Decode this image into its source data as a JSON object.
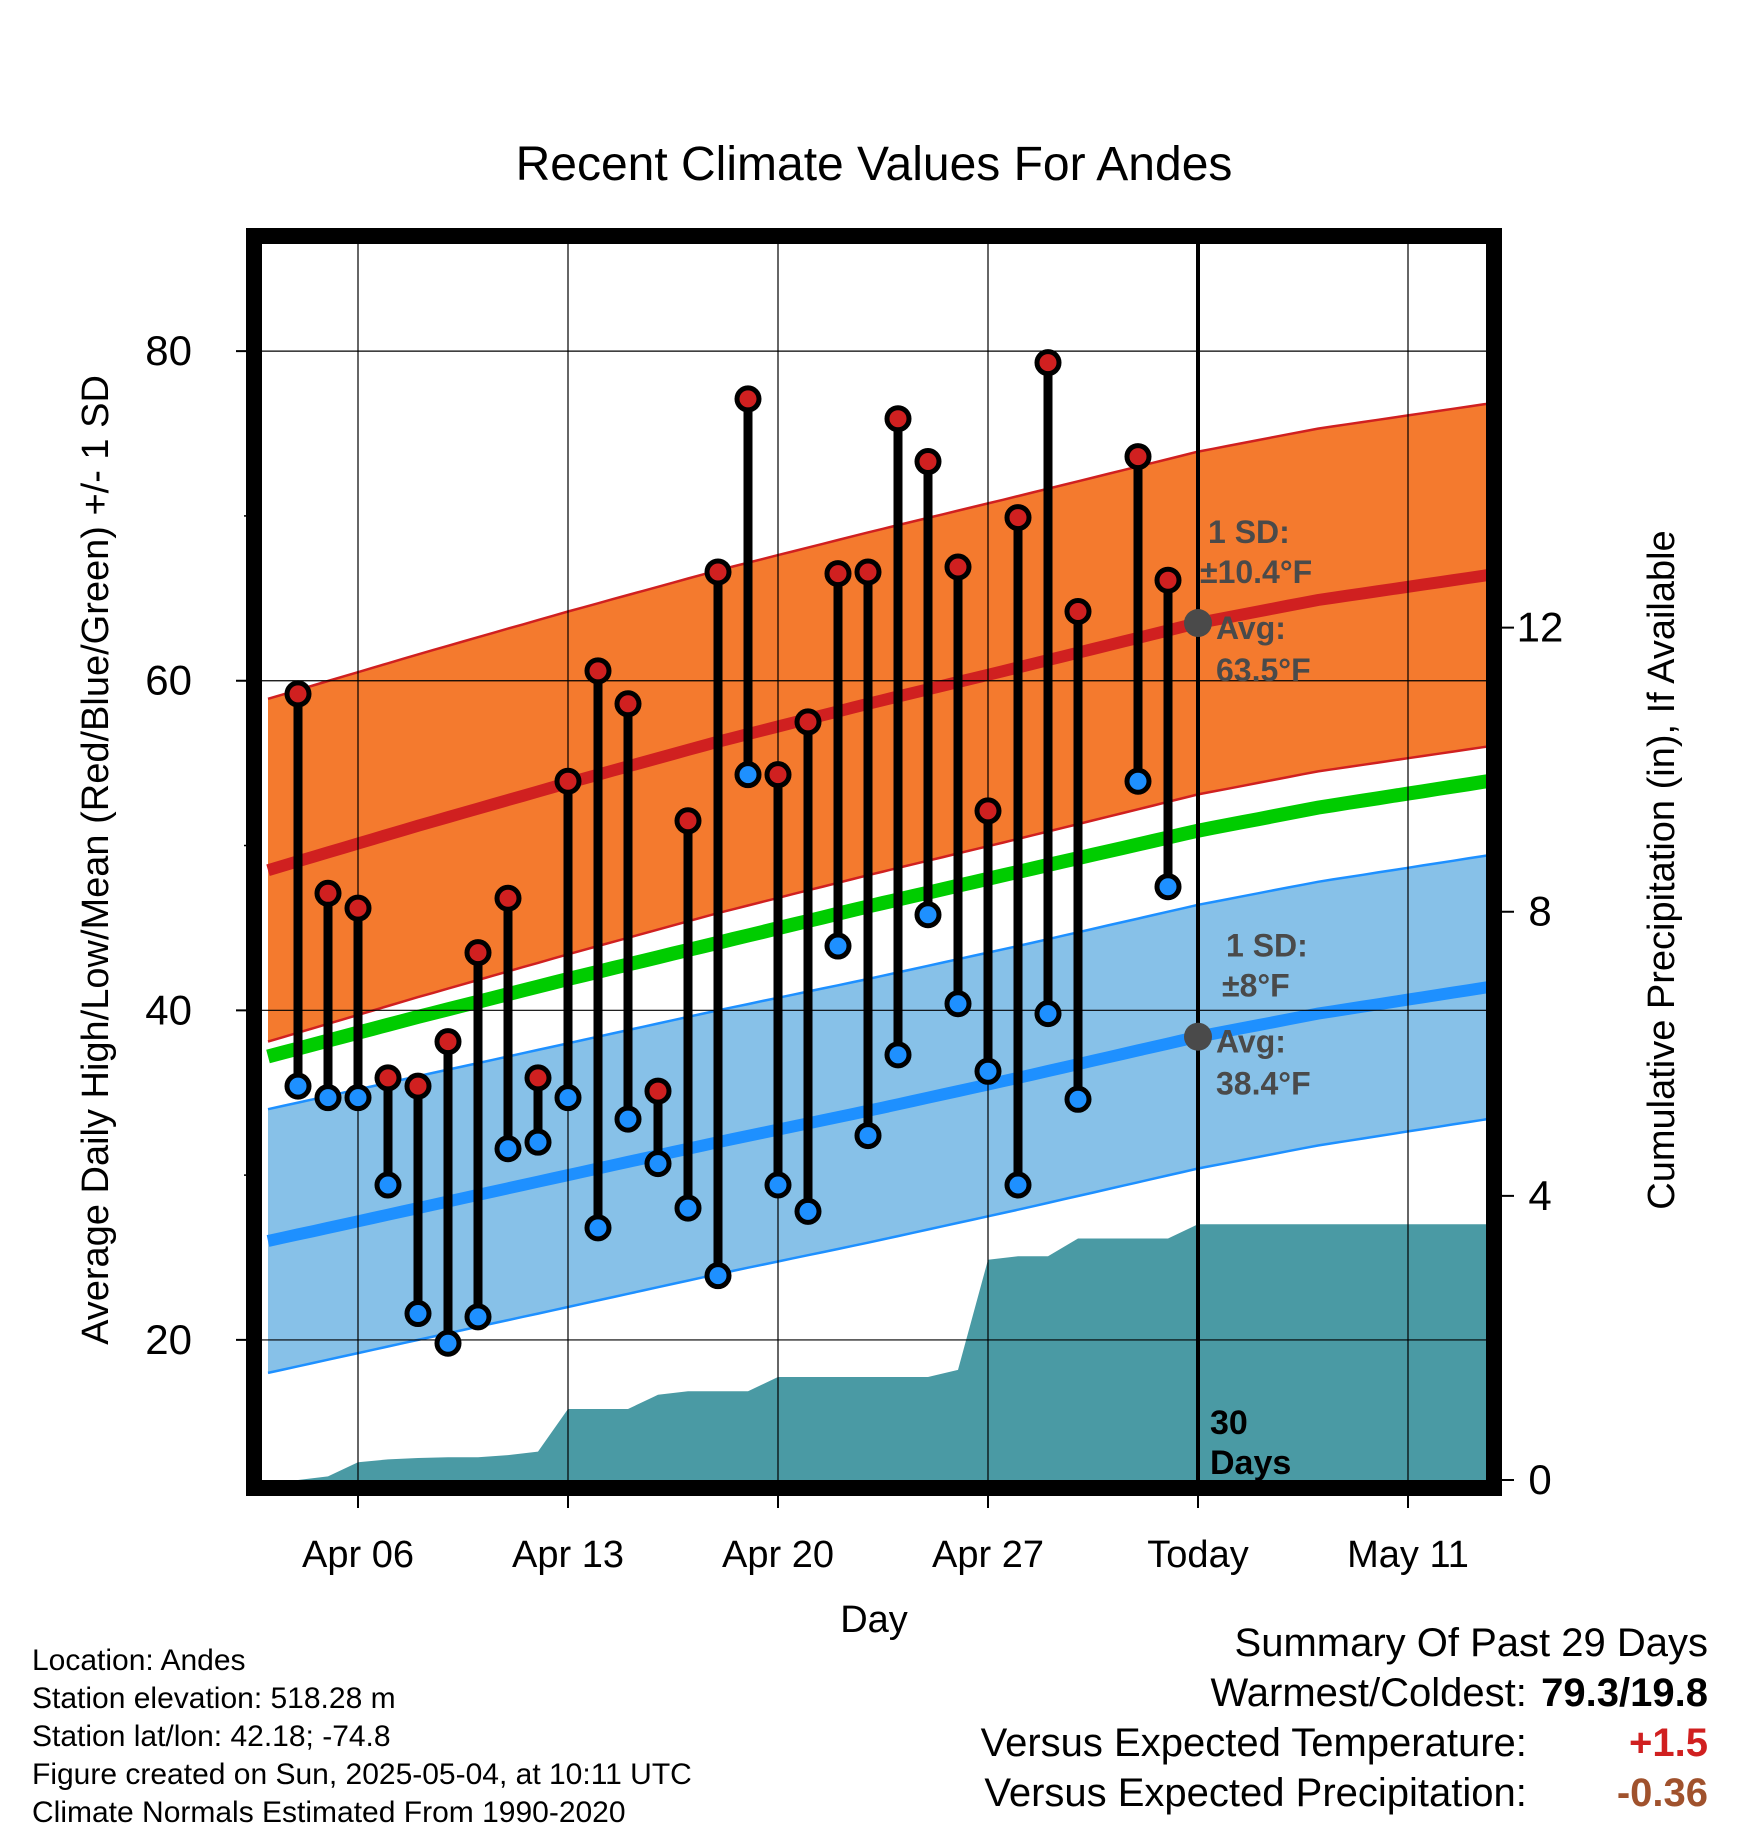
{
  "colors": {
    "high": "#d02020",
    "low": "#1e90ff",
    "mean": "#00cc00",
    "high_band": "#f47a2e",
    "low_band": "#87c1e8",
    "precip": "#4a9aa4",
    "avg_marker": "#4a4a4a",
    "annot_text": "#4a4a4a",
    "temp_anomaly": "#d02020",
    "precip_anomaly": "#a0522d"
  },
  "chart_data": {
    "type": "line",
    "title": "Recent Climate Values For Andes",
    "xlabel": "Day",
    "ylabel": "Average Daily High/Low/Mean (Red/Blue/Green) +/- 1 SD",
    "y2label": "Cumulative Precipitation (in), If Available",
    "ylim": [
      11.5,
      86.5
    ],
    "y2lim": [
      0,
      17.4
    ],
    "xlim": [
      0,
      41
    ],
    "yticks": [
      20,
      40,
      60,
      80
    ],
    "y2ticks": [
      0,
      4,
      8,
      12
    ],
    "xticks": [
      {
        "x": 3,
        "label": "Apr 06"
      },
      {
        "x": 10,
        "label": "Apr 13"
      },
      {
        "x": 17,
        "label": "Apr 20"
      },
      {
        "x": 24,
        "label": "Apr 27"
      },
      {
        "x": 31,
        "label": "Today"
      },
      {
        "x": 38,
        "label": "May 11"
      }
    ],
    "today_x": 31,
    "today_label": "30\nDays",
    "grid": true,
    "normals": {
      "x": [
        0,
        5,
        10,
        15,
        20,
        25,
        31,
        35,
        41
      ],
      "high_mean": [
        48.5,
        51.2,
        53.8,
        56.3,
        58.6,
        60.8,
        63.5,
        64.9,
        66.5
      ],
      "high_sd": 10.4,
      "low_mean": [
        26.0,
        28.0,
        30.0,
        32.0,
        33.9,
        35.9,
        38.4,
        39.8,
        41.5
      ],
      "low_sd": 8,
      "daily_mean": [
        37.2,
        39.6,
        41.9,
        44.1,
        46.3,
        48.4,
        50.9,
        52.3,
        54.0
      ]
    },
    "annotations": {
      "high": {
        "sd_label": "1 SD:",
        "sd_value": "±10.4°F",
        "avg_label": "Avg:",
        "avg_value": "63.5°F",
        "avg": 63.5
      },
      "low": {
        "sd_label": "1 SD:",
        "sd_value": "±8°F",
        "avg_label": "Avg:",
        "avg_value": "38.4°F",
        "avg": 38.4
      }
    },
    "daily": [
      {
        "x": 1,
        "high": 59.2,
        "low": 35.4,
        "high_color": "red",
        "low_color": "blue"
      },
      {
        "x": 2,
        "high": 47.1,
        "low": 34.7,
        "high_color": "red",
        "low_color": "blue"
      },
      {
        "x": 3,
        "high": 46.2,
        "low": 34.7,
        "high_color": "red",
        "low_color": "blue"
      },
      {
        "x": 4,
        "high": 35.9,
        "low": 29.4,
        "high_color": "red",
        "low_color": "blue"
      },
      {
        "x": 5,
        "high": 35.4,
        "low": 21.6,
        "high_color": "red",
        "low_color": "blue"
      },
      {
        "x": 6,
        "high": 38.1,
        "low": 19.8,
        "high_color": "red",
        "low_color": "blue"
      },
      {
        "x": 7,
        "high": 43.5,
        "low": 21.4,
        "high_color": "red",
        "low_color": "blue"
      },
      {
        "x": 8,
        "high": 46.8,
        "low": 31.6,
        "high_color": "red",
        "low_color": "blue"
      },
      {
        "x": 9,
        "high": 35.9,
        "low": 32.0,
        "high_color": "red",
        "low_color": "blue"
      },
      {
        "x": 10,
        "high": 53.9,
        "low": 34.7,
        "high_color": "red",
        "low_color": "blue"
      },
      {
        "x": 11,
        "high": 60.6,
        "low": 26.8,
        "high_color": "red",
        "low_color": "blue"
      },
      {
        "x": 12,
        "high": 58.6,
        "low": 33.4,
        "high_color": "red",
        "low_color": "blue"
      },
      {
        "x": 13,
        "high": 35.1,
        "low": 30.7,
        "high_color": "red",
        "low_color": "blue"
      },
      {
        "x": 14,
        "high": 51.5,
        "low": 28.0,
        "high_color": "red",
        "low_color": "blue"
      },
      {
        "x": 15,
        "high": 66.6,
        "low": 23.9,
        "high_color": "red",
        "low_color": "blue"
      },
      {
        "x": 16,
        "high": 77.1,
        "low": 54.3,
        "high_color": "red",
        "low_color": "blue"
      },
      {
        "x": 17,
        "high": 54.3,
        "low": 29.4,
        "high_color": "red",
        "low_color": "blue"
      },
      {
        "x": 18,
        "high": 57.5,
        "low": 27.8,
        "high_color": "red",
        "low_color": "blue"
      },
      {
        "x": 19,
        "high": 66.5,
        "low": 43.9,
        "high_color": "red",
        "low_color": "blue"
      },
      {
        "x": 20,
        "high": 66.6,
        "low": 32.4,
        "high_color": "red",
        "low_color": "blue"
      },
      {
        "x": 21,
        "high": 75.9,
        "low": 37.3,
        "high_color": "red",
        "low_color": "blue"
      },
      {
        "x": 22,
        "high": 73.3,
        "low": 45.8,
        "high_color": "red",
        "low_color": "blue"
      },
      {
        "x": 23,
        "high": 66.9,
        "low": 40.4,
        "high_color": "red",
        "low_color": "blue"
      },
      {
        "x": 24,
        "high": 52.1,
        "low": 36.3,
        "high_color": "red",
        "low_color": "blue"
      },
      {
        "x": 25,
        "high": 69.9,
        "low": 29.4,
        "high_color": "red",
        "low_color": "blue"
      },
      {
        "x": 26,
        "high": 79.3,
        "low": 39.8,
        "high_color": "red",
        "low_color": "blue"
      },
      {
        "x": 27,
        "high": 64.2,
        "low": 34.6,
        "high_color": "red",
        "low_color": "blue"
      },
      {
        "x": 29,
        "high": 73.6,
        "low": 53.9,
        "high_color": "red",
        "low_color": "blue"
      },
      {
        "x": 30,
        "high": 66.1,
        "low": 47.5,
        "high_color": "red",
        "low_color": "blue"
      }
    ],
    "precip_cumulative": {
      "x": [
        1,
        2,
        3,
        4,
        5,
        6,
        7,
        8,
        9,
        10,
        11,
        12,
        13,
        14,
        15,
        16,
        17,
        18,
        19,
        20,
        21,
        22,
        23,
        24,
        25,
        26,
        27,
        28,
        29,
        30,
        31,
        41
      ],
      "values": [
        0.0,
        0.05,
        0.25,
        0.29,
        0.31,
        0.32,
        0.32,
        0.35,
        0.4,
        1.0,
        1.0,
        1.0,
        1.2,
        1.25,
        1.25,
        1.25,
        1.45,
        1.45,
        1.45,
        1.45,
        1.45,
        1.45,
        1.55,
        3.1,
        3.15,
        3.15,
        3.4,
        3.4,
        3.4,
        3.4,
        3.6,
        3.6
      ]
    }
  },
  "footer": {
    "location": "Location: Andes",
    "elevation": "Station elevation: 518.28 m",
    "latlon": "Station lat/lon: 42.18; -74.8",
    "created": "Figure created on Sun, 2025-05-04, at 10:11 UTC",
    "normals": "Climate Normals Estimated From 1990-2020"
  },
  "summary": {
    "heading": "Summary Of Past 29 Days",
    "warm_cold_label": "Warmest/Coldest:",
    "warmest": "79.3",
    "coldest": "19.8",
    "temp_label": "Versus Expected Temperature:",
    "temp_value": "+1.5",
    "precip_label": "Versus Expected Precipitation:",
    "precip_value": "-0.36"
  }
}
